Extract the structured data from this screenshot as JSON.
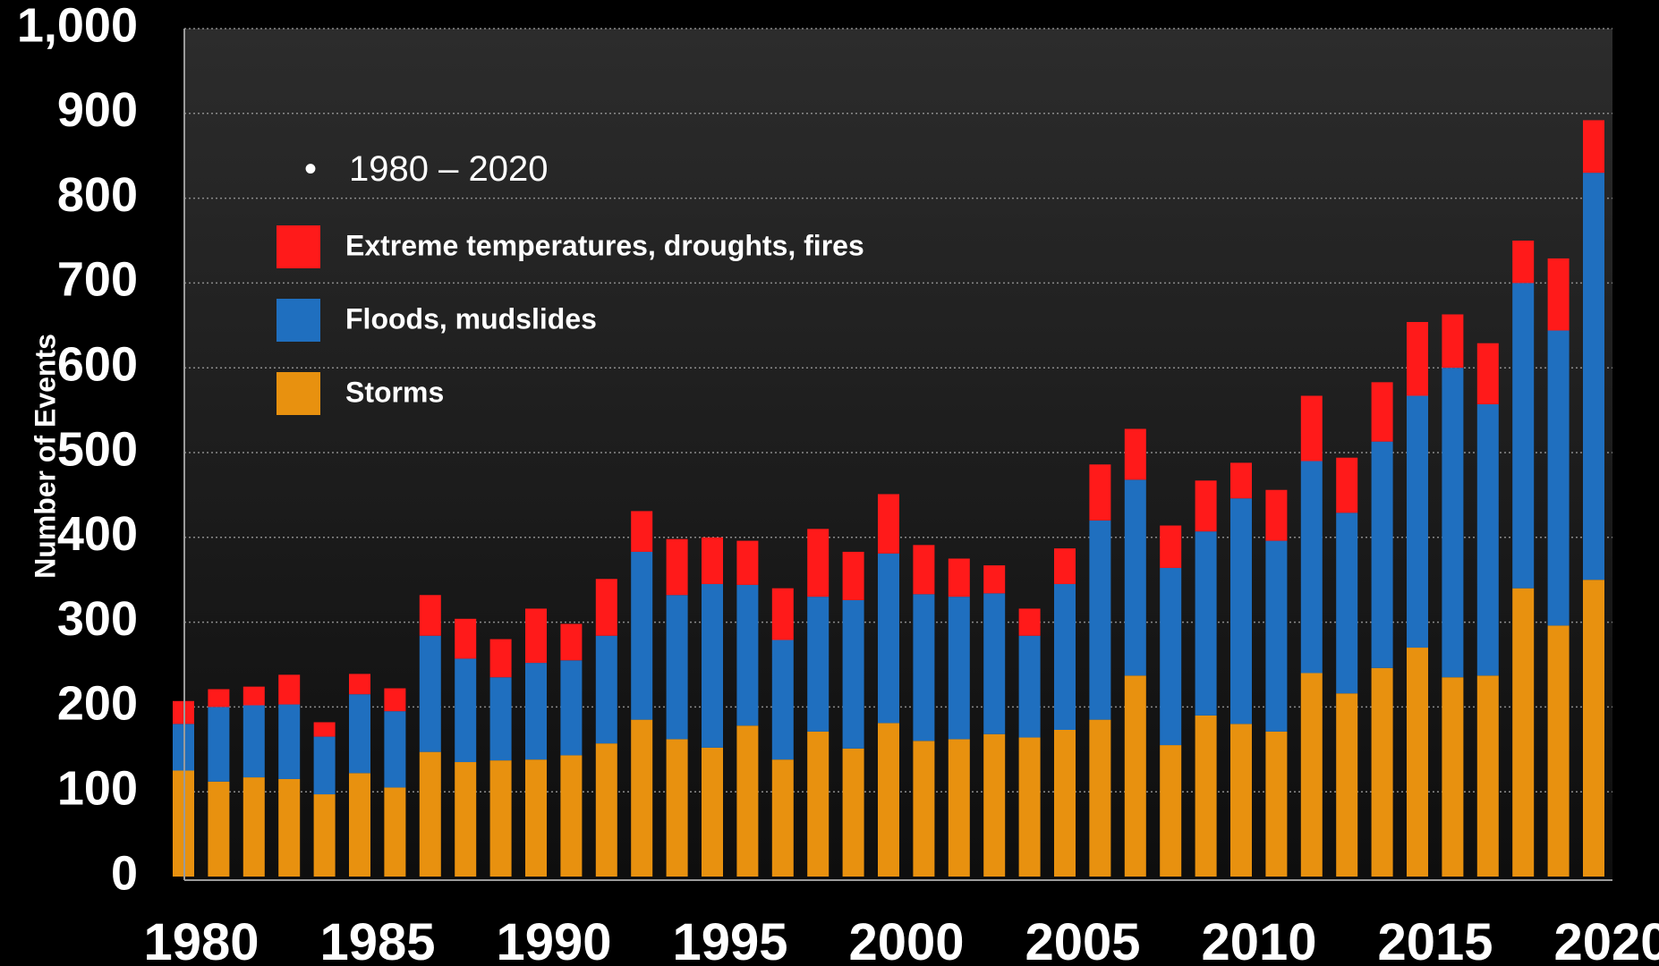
{
  "chart_data": {
    "type": "bar",
    "stacked": true,
    "title": "",
    "subtitle": "1980 – 2020",
    "xlabel": "",
    "ylabel": "Number of Events",
    "ylim": [
      0,
      1000
    ],
    "yticks": [
      "0",
      "100",
      "200",
      "300",
      "400",
      "500",
      "600",
      "700",
      "800",
      "900",
      "1,000"
    ],
    "ytick_values": [
      0,
      100,
      200,
      300,
      400,
      500,
      600,
      700,
      800,
      900,
      1000
    ],
    "xtick_labels": [
      "1980",
      "1985",
      "1990",
      "1995",
      "2000",
      "2005",
      "2010",
      "2015",
      "2020"
    ],
    "categories": [
      1980,
      1981,
      1982,
      1983,
      1984,
      1985,
      1986,
      1987,
      1988,
      1989,
      1990,
      1991,
      1992,
      1993,
      1994,
      1995,
      1996,
      1997,
      1998,
      1999,
      2000,
      2001,
      2002,
      2003,
      2004,
      2005,
      2006,
      2007,
      2008,
      2009,
      2010,
      2011,
      2012,
      2013,
      2014,
      2015,
      2016,
      2017,
      2018,
      2019,
      2020
    ],
    "grid": true,
    "legend_position": "top-left",
    "series": [
      {
        "name": "Storms",
        "color": "#E8910F",
        "values": [
          125,
          112,
          117,
          115,
          97,
          122,
          105,
          147,
          135,
          137,
          138,
          143,
          157,
          185,
          162,
          152,
          178,
          138,
          171,
          151,
          181,
          160,
          162,
          168,
          164,
          173,
          185,
          237,
          155,
          190,
          180,
          171,
          240,
          216,
          246,
          270,
          235,
          237,
          340,
          296,
          350
        ]
      },
      {
        "name": "Floods, mudslides",
        "color": "#1F6FBF",
        "values": [
          55,
          88,
          85,
          88,
          68,
          93,
          90,
          137,
          122,
          98,
          114,
          112,
          127,
          198,
          170,
          193,
          166,
          141,
          159,
          175,
          200,
          173,
          168,
          166,
          120,
          172,
          235,
          231,
          209,
          217,
          266,
          225,
          250,
          213,
          267,
          297,
          365,
          320,
          360,
          348,
          480
        ]
      },
      {
        "name": "Extreme temperatures, droughts, fires",
        "color": "#FF1A1A",
        "values": [
          27,
          21,
          22,
          35,
          17,
          24,
          27,
          48,
          47,
          45,
          64,
          43,
          67,
          48,
          66,
          55,
          52,
          61,
          80,
          57,
          70,
          58,
          45,
          33,
          32,
          42,
          66,
          60,
          50,
          60,
          42,
          60,
          77,
          65,
          70,
          87,
          63,
          72,
          50,
          85,
          62
        ]
      }
    ]
  }
}
